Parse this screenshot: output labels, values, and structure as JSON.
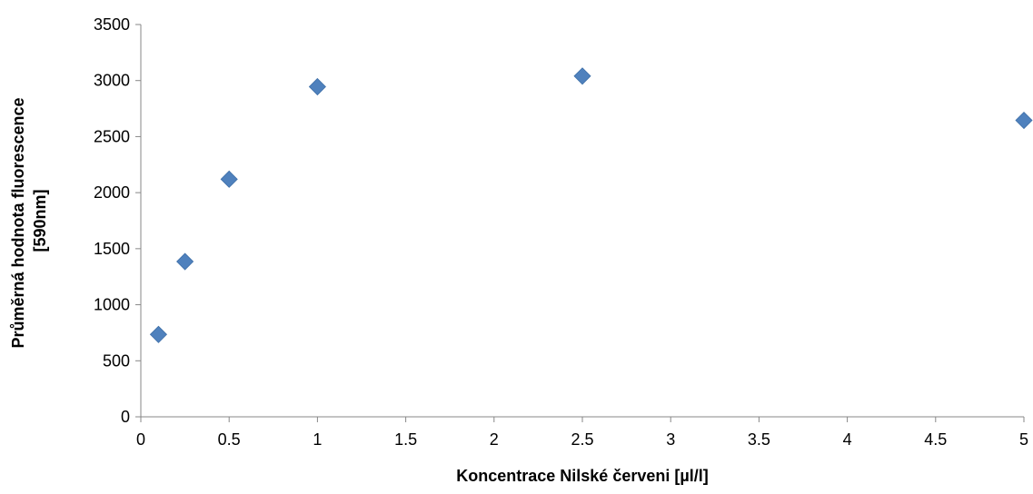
{
  "chart_data": {
    "type": "scatter",
    "title": "",
    "xlabel": "Koncentrace Nilské červeni [µl/l]",
    "ylabel_lines": [
      "Průměrná hodnota fluorescence",
      "[590nm]"
    ],
    "xlim": [
      0,
      5
    ],
    "ylim": [
      0,
      3500
    ],
    "x_ticks": [
      "0",
      "0.5",
      "1",
      "1.5",
      "2",
      "2.5",
      "3",
      "3.5",
      "4",
      "4.5",
      "5"
    ],
    "y_ticks": [
      "0",
      "500",
      "1000",
      "1500",
      "2000",
      "2500",
      "3000",
      "3500"
    ],
    "grid": false,
    "legend": false,
    "marker": "diamond",
    "series": [
      {
        "color": "#4F81BD",
        "points": [
          {
            "x": 0.1,
            "y": 735
          },
          {
            "x": 0.25,
            "y": 1385
          },
          {
            "x": 0.5,
            "y": 2120
          },
          {
            "x": 1,
            "y": 2945
          },
          {
            "x": 2.5,
            "y": 3040
          },
          {
            "x": 5,
            "y": 2645
          }
        ]
      }
    ]
  }
}
